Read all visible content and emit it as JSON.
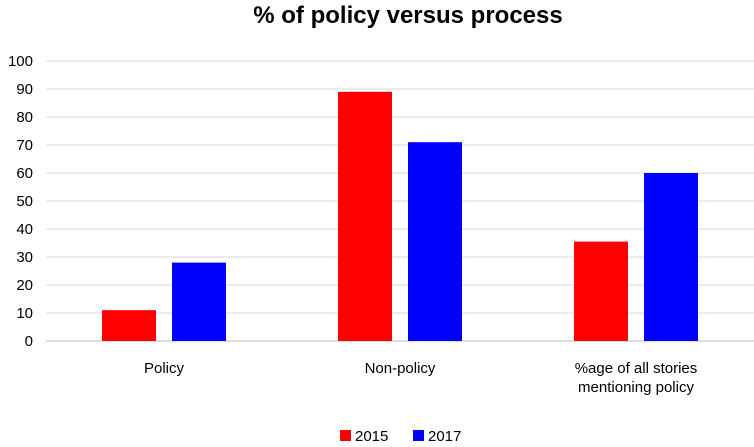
{
  "chart_data": {
    "type": "bar",
    "title": "% of policy versus process",
    "xlabel": "",
    "ylabel": "",
    "ylim": [
      0,
      100
    ],
    "yticks": [
      0,
      10,
      20,
      30,
      40,
      50,
      60,
      70,
      80,
      90,
      100
    ],
    "grid": true,
    "legend_position": "bottom",
    "categories": [
      [
        "Policy"
      ],
      [
        "Non-policy"
      ],
      [
        "%age of all stories",
        "mentioning policy"
      ]
    ],
    "series": [
      {
        "name": "2015",
        "color": "#ff0000",
        "values": [
          11,
          89,
          35.5
        ]
      },
      {
        "name": "2017",
        "color": "#0000ff",
        "values": [
          28,
          71,
          60
        ]
      }
    ]
  }
}
